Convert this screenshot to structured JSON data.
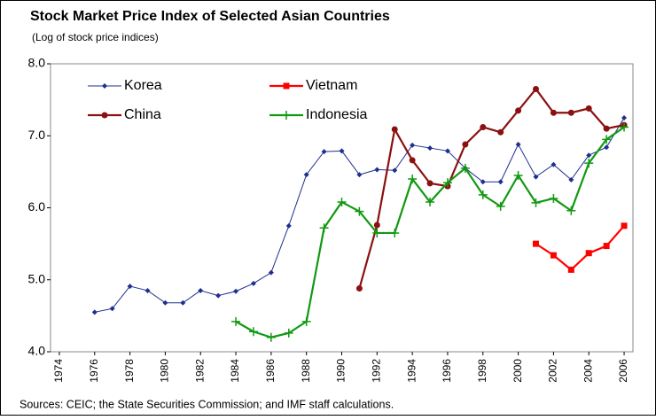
{
  "chart_data": {
    "type": "line",
    "title": "Stock Market Price Index of Selected Asian Countries",
    "subtitle": "(Log of stock price indices)",
    "source": "Sources: CEIC; the State Securities Commission; and IMF staff calculations.",
    "x": [
      1974,
      1975,
      1976,
      1977,
      1978,
      1979,
      1980,
      1981,
      1982,
      1983,
      1984,
      1985,
      1986,
      1987,
      1988,
      1989,
      1990,
      1991,
      1992,
      1993,
      1994,
      1995,
      1996,
      1997,
      1998,
      1999,
      2000,
      2001,
      2002,
      2003,
      2004,
      2005,
      2006
    ],
    "xlim": [
      1973.5,
      2006.5
    ],
    "xticks": [
      1974,
      1976,
      1978,
      1980,
      1982,
      1984,
      1986,
      1988,
      1990,
      1992,
      1994,
      1996,
      1998,
      2000,
      2002,
      2004,
      2006
    ],
    "ylim": [
      4,
      8
    ],
    "yticks": [
      {
        "value": 4,
        "label": "4.0"
      },
      {
        "value": 5,
        "label": "5.0"
      },
      {
        "value": 6,
        "label": "6.0"
      },
      {
        "value": 7,
        "label": "7.0"
      },
      {
        "value": 8,
        "label": "8.0"
      }
    ],
    "legend": "upper left",
    "series": [
      {
        "name": "Korea",
        "color": "#1f2f8f",
        "marker": "diamond",
        "values": [
          null,
          null,
          4.55,
          4.6,
          4.91,
          4.85,
          4.68,
          4.68,
          4.85,
          4.78,
          4.84,
          4.95,
          5.1,
          5.75,
          6.46,
          6.78,
          6.79,
          6.46,
          6.53,
          6.52,
          6.87,
          6.83,
          6.79,
          6.55,
          6.36,
          6.36,
          6.88,
          6.43,
          6.6,
          6.39,
          6.73,
          6.84,
          7.25
        ]
      },
      {
        "name": "Vietnam",
        "color": "#ff0000",
        "marker": "square",
        "values": [
          null,
          null,
          null,
          null,
          null,
          null,
          null,
          null,
          null,
          null,
          null,
          null,
          null,
          null,
          null,
          null,
          null,
          null,
          null,
          null,
          null,
          null,
          null,
          null,
          null,
          null,
          null,
          5.5,
          5.34,
          5.14,
          5.37,
          5.47,
          5.75
        ]
      },
      {
        "name": "China",
        "color": "#8b1010",
        "marker": "circle",
        "values": [
          null,
          null,
          null,
          null,
          null,
          null,
          null,
          null,
          null,
          null,
          null,
          null,
          null,
          null,
          null,
          null,
          null,
          4.88,
          5.76,
          7.09,
          6.66,
          6.34,
          6.3,
          6.88,
          7.12,
          7.05,
          7.35,
          7.65,
          7.32,
          7.32,
          7.38,
          7.1,
          7.15
        ]
      },
      {
        "name": "Indonesia",
        "color": "#119911",
        "marker": "plus",
        "values": [
          null,
          null,
          null,
          null,
          null,
          null,
          null,
          null,
          null,
          null,
          4.42,
          4.28,
          4.2,
          4.26,
          4.42,
          5.72,
          6.08,
          5.95,
          5.65,
          5.65,
          6.4,
          6.08,
          6.35,
          6.55,
          6.18,
          6.02,
          6.45,
          6.07,
          6.13,
          5.96,
          6.62,
          6.95,
          7.12
        ]
      }
    ]
  }
}
